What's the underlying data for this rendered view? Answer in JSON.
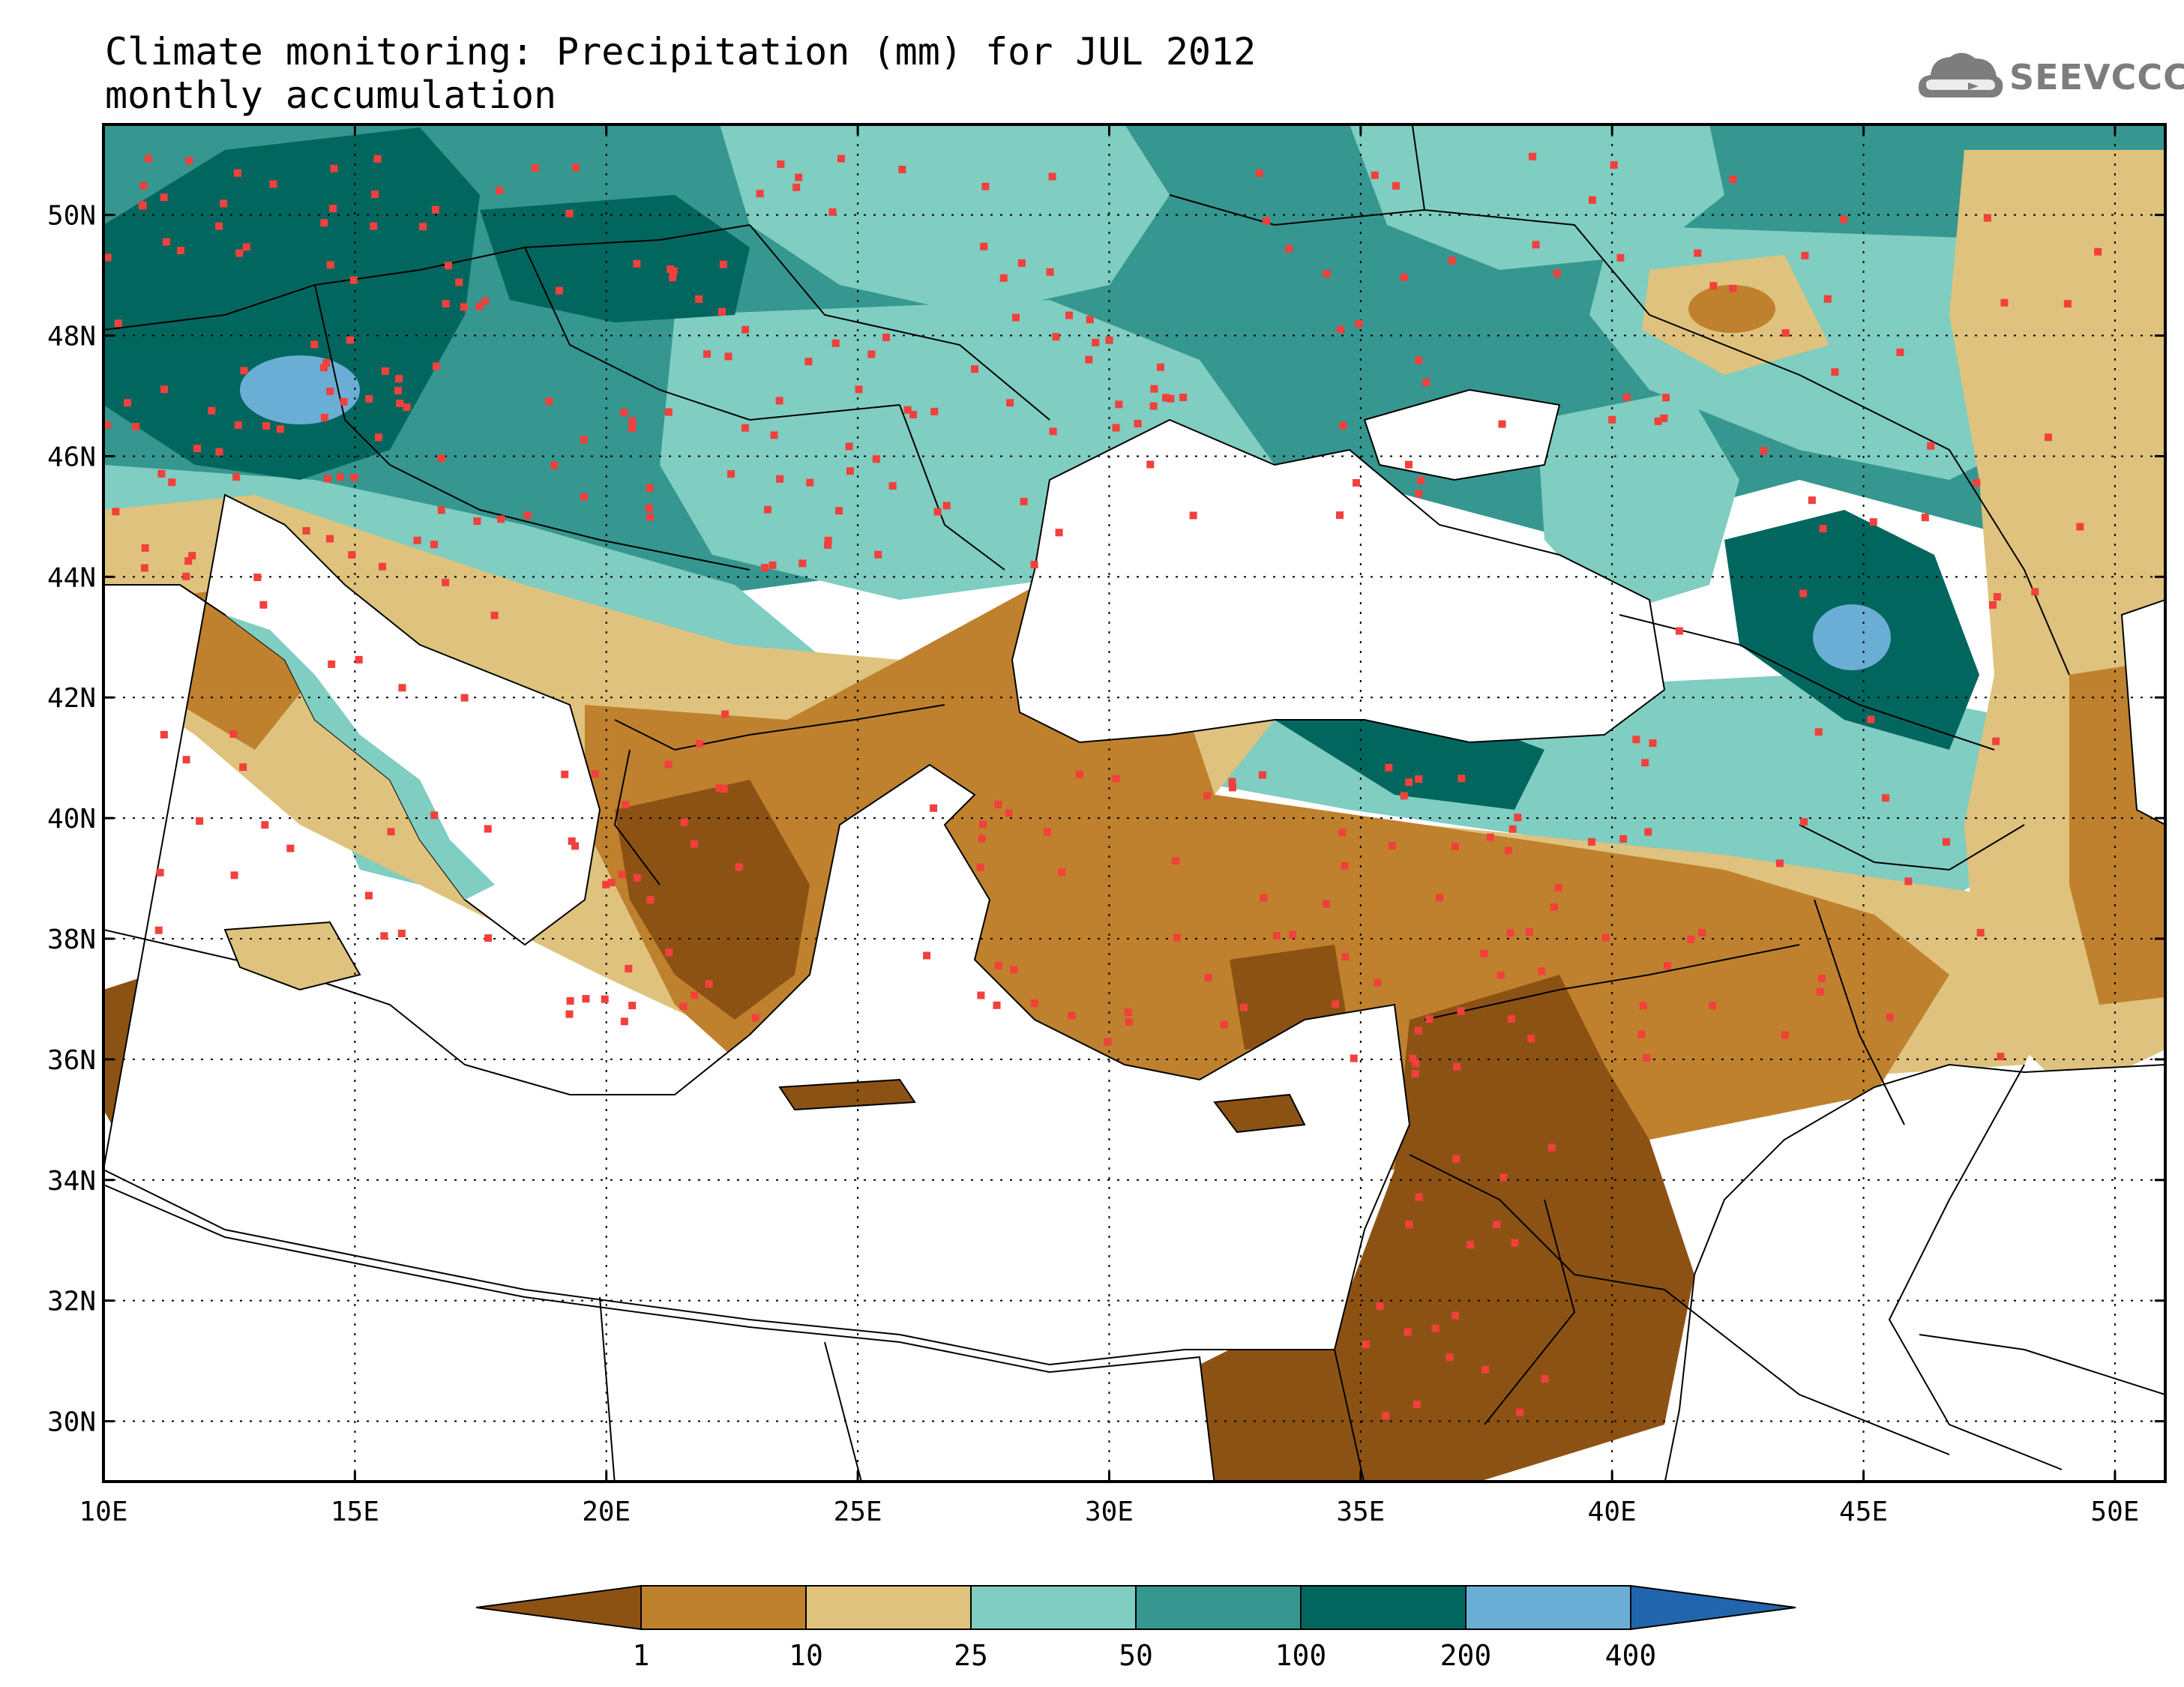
{
  "title": {
    "line1": "Climate monitoring: Precipitation (mm) for JUL 2012",
    "line2": "monthly accumulation"
  },
  "logo": {
    "text": "SEEVCCC",
    "icon": "cloud-icon"
  },
  "map": {
    "lon_range": [
      10,
      51
    ],
    "lat_range": [
      29,
      51.5
    ],
    "x_ticks": [
      "10E",
      "15E",
      "20E",
      "25E",
      "30E",
      "35E",
      "40E",
      "45E",
      "50E"
    ],
    "y_ticks": [
      "30N",
      "32N",
      "34N",
      "36N",
      "38N",
      "40N",
      "42N",
      "44N",
      "46N",
      "48N",
      "50N"
    ],
    "grid": "dotted",
    "station_marker_color": "#f2403c"
  },
  "legend": {
    "breaks": [
      "1",
      "10",
      "25",
      "50",
      "100",
      "200",
      "400"
    ],
    "colors": [
      "#8c5214",
      "#bf812d",
      "#dfc27d",
      "#80cdc1",
      "#35978f",
      "#01665e",
      "#6aaed6",
      "#2166ac"
    ]
  }
}
